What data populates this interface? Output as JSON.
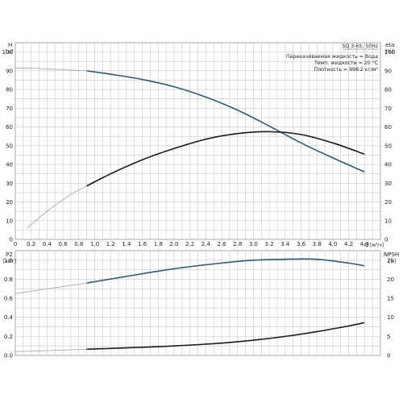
{
  "chart_data": [
    {
      "type": "line",
      "panel": "top",
      "info_lines": [
        "SQ 3-65, 50Hz",
        "Перекачиваемая жидкость = Вода",
        "Темп. жидкости = 20 °C",
        "Плотность = 998.2 кг/м³"
      ],
      "y_left_label": "H",
      "y_left_unit": "[м]",
      "y_right_label": "eta",
      "y_right_unit": "[%]",
      "x_label": "Q",
      "x_unit": "[м³/ч]",
      "xlim": [
        0,
        4.6
      ],
      "ylim": [
        0,
        105
      ],
      "x_ticks": [
        "0",
        "0.2",
        "0.4",
        "0.6",
        "0.8",
        "1.0",
        "1.2",
        "1.4",
        "1.6",
        "1.8",
        "2.0",
        "2.2",
        "2.4",
        "2.6",
        "2.8",
        "3.0",
        "3.2",
        "3.4",
        "3.6",
        "3.8",
        "4.0",
        "4.2",
        "4.4"
      ],
      "y_ticks": [
        "0",
        "10",
        "20",
        "30",
        "40",
        "50",
        "60",
        "70",
        "80",
        "90",
        "100"
      ],
      "grid": true,
      "colors": {
        "head": "#2e5a7a",
        "efficiency": "#1a1a1a",
        "extension": "#a9a9a9"
      },
      "series": [
        {
          "key": "head",
          "x": [
            0,
            0.2,
            0.4,
            0.6,
            0.9,
            1.2,
            1.6,
            2.0,
            2.4,
            2.8,
            3.2,
            3.6,
            4.0,
            4.4
          ],
          "y": [
            91.5,
            91.4,
            91,
            90.6,
            90,
            88.2,
            85.4,
            81.5,
            76,
            69,
            60.5,
            51.5,
            43.5,
            36
          ],
          "solid_from": 0.9
        },
        {
          "key": "efficiency",
          "x": [
            0.15,
            0.4,
            0.7,
            0.9,
            1.2,
            1.6,
            2.0,
            2.4,
            2.8,
            3.2,
            3.6,
            4.0,
            4.4
          ],
          "y": [
            6,
            15,
            24,
            28.5,
            35,
            42.5,
            48.5,
            53.5,
            56.5,
            57.5,
            56,
            51.5,
            45.5
          ],
          "solid_from": 0.9
        }
      ]
    },
    {
      "type": "line",
      "panel": "bottom",
      "y_left_label": "P2",
      "y_left_unit": "[кВт]",
      "y_right_label": "NPSH",
      "y_right_unit": "[м]",
      "xlim": [
        0,
        4.6
      ],
      "ylim": [
        0,
        1.1
      ],
      "y_ticks_left": [
        "0.0",
        "0.2",
        "0.4",
        "0.6",
        "0.8",
        "1.0"
      ],
      "y_ticks_right": [
        "0",
        "5",
        "10",
        "15",
        "20",
        "25"
      ],
      "grid": true,
      "colors": {
        "power": "#2e5a7a",
        "npsh": "#1a1a1a",
        "extension": "#a9a9a9"
      },
      "series": [
        {
          "key": "power",
          "x": [
            0,
            0.4,
            0.9,
            1.4,
            2.0,
            2.6,
            3.0,
            3.4,
            3.8,
            4.2,
            4.4
          ],
          "y": [
            0.65,
            0.7,
            0.76,
            0.83,
            0.91,
            0.97,
            1.0,
            1.01,
            1.01,
            0.97,
            0.94
          ],
          "solid_from": 0.9
        },
        {
          "key": "npsh",
          "x": [
            0,
            0.4,
            0.9,
            1.4,
            2.0,
            2.6,
            3.0,
            3.4,
            3.8,
            4.2,
            4.4
          ],
          "y": [
            0.04,
            0.05,
            0.065,
            0.08,
            0.1,
            0.13,
            0.16,
            0.2,
            0.25,
            0.31,
            0.345
          ],
          "solid_from": 0.9
        }
      ]
    }
  ]
}
